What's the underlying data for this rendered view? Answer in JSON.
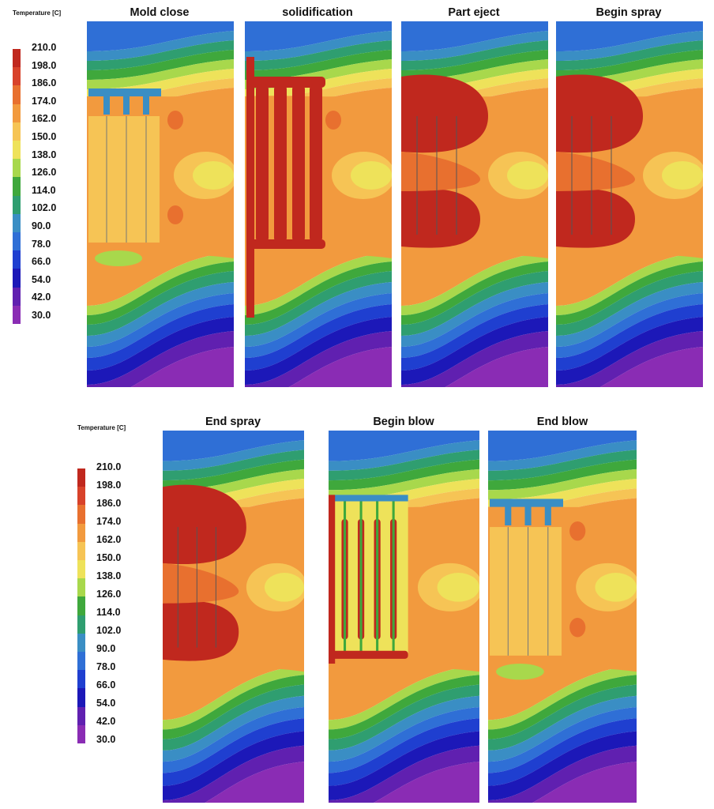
{
  "legend": {
    "title": "Temperature [C]",
    "values": [
      "210.0",
      "198.0",
      "186.0",
      "174.0",
      "162.0",
      "150.0",
      "138.0",
      "126.0",
      "114.0",
      "102.0",
      "90.0",
      "78.0",
      "66.0",
      "54.0",
      "42.0",
      "30.0"
    ],
    "colors": [
      "#c0281e",
      "#d8422a",
      "#e8702f",
      "#f29a3e",
      "#f6c455",
      "#eee25a",
      "#a8d84c",
      "#3fa83c",
      "#2f9e70",
      "#3a8ec4",
      "#2f6fd6",
      "#1f3fd0",
      "#1c18b8",
      "#6020b0",
      "#8a2cb4",
      "#a43ab4"
    ]
  },
  "panels": [
    {
      "title": "Mold close",
      "type": "mold"
    },
    {
      "title": "solidification",
      "type": "solid"
    },
    {
      "title": "Part eject",
      "type": "eject"
    },
    {
      "title": "Begin spray",
      "type": "eject"
    },
    {
      "title": "End spray",
      "type": "eject"
    },
    {
      "title": "Begin blow",
      "type": "blow"
    },
    {
      "title": "End blow",
      "type": "mold"
    }
  ]
}
